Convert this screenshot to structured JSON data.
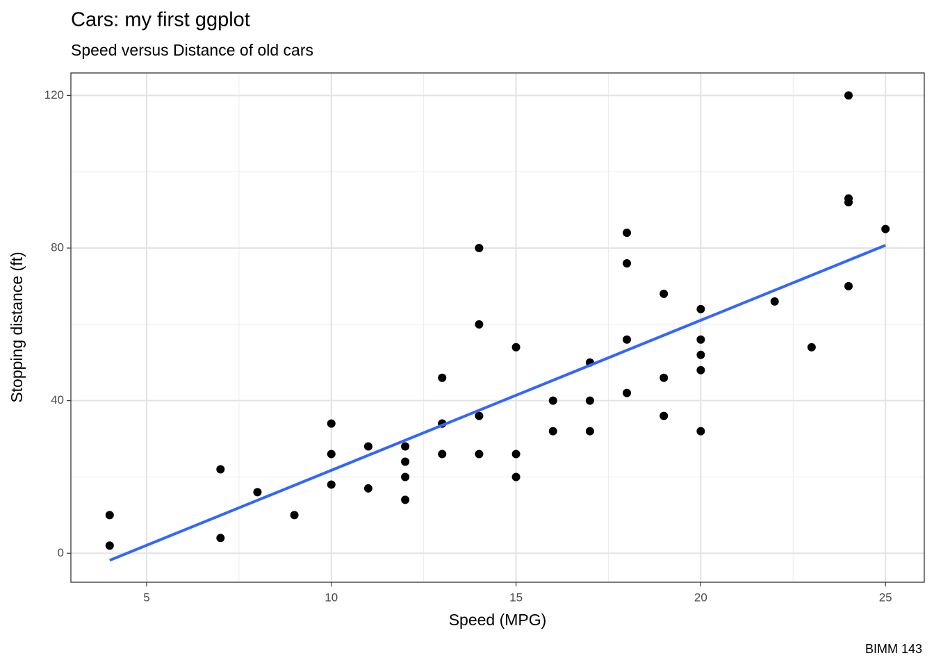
{
  "chart_data": {
    "type": "scatter",
    "title": "Cars: my first ggplot",
    "subtitle": "Speed versus Distance of old cars",
    "x_label": "Speed (MPG)",
    "y_label": "Stopping distance (ft)",
    "caption": "BIMM 143",
    "xlim": [
      2.95,
      26.05
    ],
    "ylim": [
      -7.6,
      125.9
    ],
    "xticks": [
      5,
      10,
      15,
      20,
      25
    ],
    "yticks": [
      0,
      40,
      80,
      120
    ],
    "x_minor_ticks": [
      7.5,
      12.5,
      17.5,
      22.5
    ],
    "y_minor_ticks": [
      20,
      60,
      100
    ],
    "grid": true,
    "color": "#000000",
    "x": [
      4,
      4,
      7,
      7,
      8,
      9,
      10,
      10,
      10,
      11,
      11,
      12,
      12,
      12,
      12,
      13,
      13,
      13,
      13,
      14,
      14,
      14,
      14,
      15,
      15,
      15,
      16,
      16,
      17,
      17,
      17,
      18,
      18,
      18,
      18,
      19,
      19,
      19,
      20,
      20,
      20,
      20,
      20,
      22,
      23,
      24,
      24,
      24,
      24,
      25
    ],
    "y": [
      2,
      10,
      4,
      22,
      16,
      10,
      18,
      26,
      34,
      17,
      28,
      14,
      20,
      24,
      28,
      26,
      34,
      34,
      46,
      26,
      36,
      60,
      80,
      20,
      26,
      54,
      32,
      40,
      32,
      40,
      50,
      42,
      56,
      76,
      84,
      36,
      46,
      68,
      32,
      48,
      52,
      56,
      64,
      66,
      54,
      70,
      92,
      93,
      120,
      85
    ],
    "fit": {
      "color": "#3366ff",
      "x": [
        4,
        25
      ],
      "y": [
        -1.85,
        80.73
      ]
    }
  }
}
